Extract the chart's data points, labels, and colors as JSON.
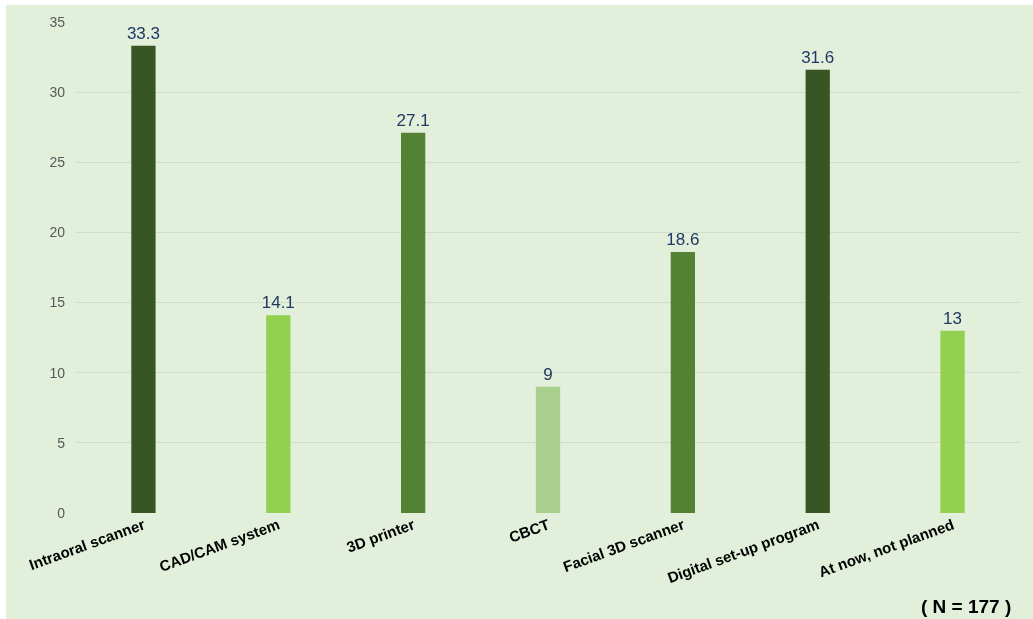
{
  "chart_data": {
    "type": "bar",
    "categories": [
      "Intraoral scanner",
      "CAD/CAM system",
      "3D printer",
      "CBCT",
      "Facial 3D scanner",
      "Digital set-up program",
      "At now, not planned"
    ],
    "values": [
      33.3,
      14.1,
      27.1,
      9,
      18.6,
      31.6,
      13
    ],
    "colors": [
      "#375623",
      "#92d050",
      "#548235",
      "#a9d08e",
      "#548235",
      "#375623",
      "#92d050"
    ],
    "ylim": [
      0,
      35
    ],
    "yticks": [
      0,
      5,
      10,
      15,
      20,
      25,
      30,
      35
    ],
    "grid": "y",
    "data_labels": true,
    "annotations": [
      "( N = 177 )"
    ]
  }
}
